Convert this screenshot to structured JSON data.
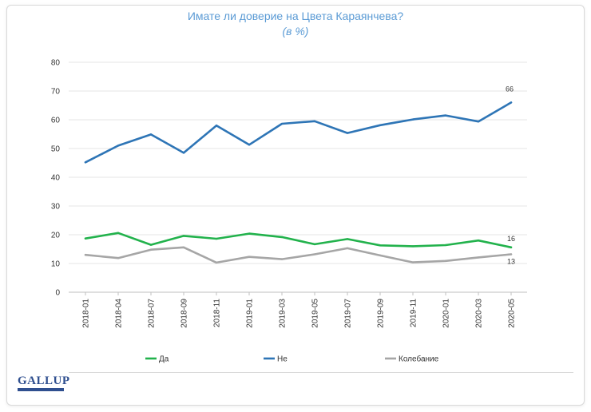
{
  "logo": {
    "text": "GALLUP"
  },
  "chart_data": {
    "type": "line",
    "title": "Имате ли доверие на Цвета Караянчева?",
    "subtitle": "(в %)",
    "xlabel": "",
    "ylabel": "",
    "ylim": [
      0,
      80
    ],
    "yticks": [
      0,
      10,
      20,
      30,
      40,
      50,
      60,
      70,
      80
    ],
    "grid": true,
    "legend_position": "bottom",
    "categories": [
      "2018-01",
      "2018-04",
      "2018-07",
      "2018-09",
      "2018-11",
      "2019-01",
      "2019-03",
      "2019-05",
      "2019-07",
      "2019-09",
      "2019-11",
      "2020-01",
      "2020-03",
      "2020-05"
    ],
    "series": [
      {
        "name": "Да",
        "color": "#22b24c",
        "values": [
          18.7,
          20.6,
          16.5,
          19.6,
          18.6,
          20.4,
          19.2,
          16.7,
          18.5,
          16.3,
          16.0,
          16.4,
          18.0,
          15.6
        ],
        "end_label": "16"
      },
      {
        "name": "Не",
        "color": "#2e75b6",
        "values": [
          45.2,
          51.0,
          54.9,
          48.5,
          58.0,
          51.3,
          58.6,
          59.5,
          55.4,
          58.1,
          60.1,
          61.5,
          59.4,
          66.0
        ],
        "end_label": "66"
      },
      {
        "name": "Колебание",
        "color": "#a6a6a6",
        "values": [
          13.0,
          11.9,
          14.8,
          15.6,
          10.3,
          12.3,
          11.5,
          13.2,
          15.3,
          12.8,
          10.4,
          10.9,
          12.1,
          13.2
        ],
        "end_label": "13"
      }
    ]
  }
}
